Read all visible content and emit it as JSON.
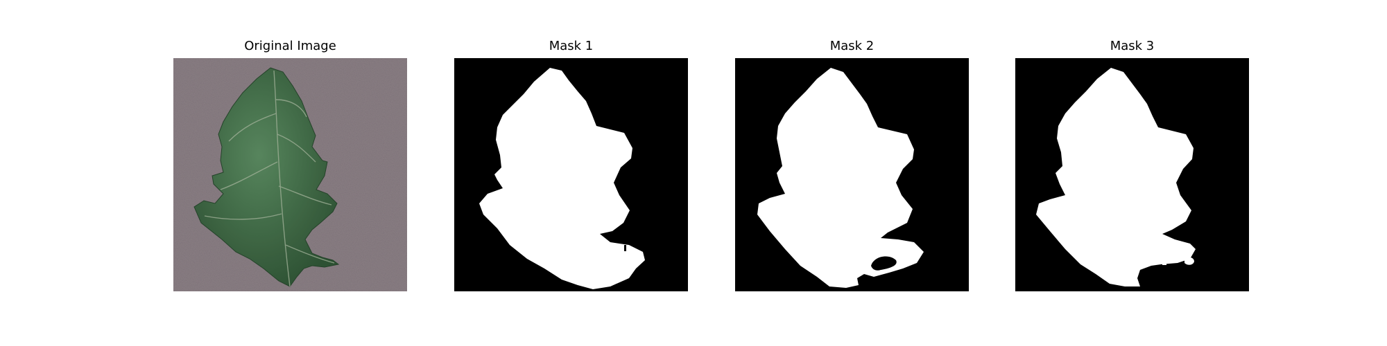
{
  "panels": [
    {
      "title": "Original Image",
      "kind": "photo",
      "subject": "leaf"
    },
    {
      "title": "Mask 1",
      "kind": "mask"
    },
    {
      "title": "Mask 2",
      "kind": "mask"
    },
    {
      "title": "Mask 3",
      "kind": "mask"
    }
  ],
  "colors": {
    "photo_background": "#8f8289",
    "leaf_dark": "#2f5435",
    "leaf_mid": "#4f7d55",
    "leaf_vein": "#a9b9a0",
    "mask_background": "#000000",
    "mask_foreground": "#ffffff"
  }
}
